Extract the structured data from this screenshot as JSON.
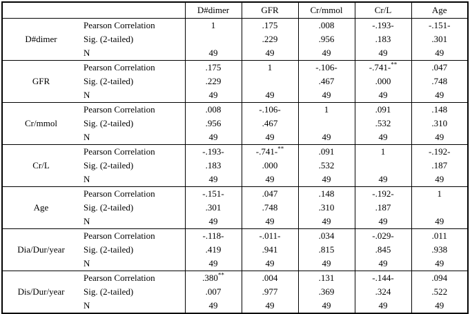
{
  "page": {
    "background": "#ffffff"
  },
  "table": {
    "columns": [
      "D#dimer",
      "GFR",
      "Cr/mmol",
      "Cr/L",
      "Age"
    ],
    "row_labels": {
      "pearson": "Pearson Correlation",
      "sig": "Sig. (2-tailed)",
      "n": "N"
    },
    "groups": [
      {
        "variable": "D#dimer",
        "pearson": [
          "1",
          ".175",
          ".008",
          "-.193-",
          "-.151-"
        ],
        "sig": [
          "",
          ".229",
          ".956",
          ".183",
          ".301"
        ],
        "n": [
          "49",
          "49",
          "49",
          "49",
          "49"
        ]
      },
      {
        "variable": "GFR",
        "pearson": [
          ".175",
          "1",
          "-.106-",
          "-.741-**",
          ".047"
        ],
        "sig": [
          ".229",
          "",
          ".467",
          ".000",
          ".748"
        ],
        "n": [
          "49",
          "49",
          "49",
          "49",
          "49"
        ]
      },
      {
        "variable": "Cr/mmol",
        "pearson": [
          ".008",
          "-.106-",
          "1",
          ".091",
          ".148"
        ],
        "sig": [
          ".956",
          ".467",
          "",
          ".532",
          ".310"
        ],
        "n": [
          "49",
          "49",
          "49",
          "49",
          "49"
        ]
      },
      {
        "variable": "Cr/L",
        "pearson": [
          "-.193-",
          "-.741-**",
          ".091",
          "1",
          "-.192-"
        ],
        "sig": [
          ".183",
          ".000",
          ".532",
          "",
          ".187"
        ],
        "n": [
          "49",
          "49",
          "49",
          "49",
          "49"
        ]
      },
      {
        "variable": "Age",
        "pearson": [
          "-.151-",
          ".047",
          ".148",
          "-.192-",
          "1"
        ],
        "sig": [
          ".301",
          ".748",
          ".310",
          ".187",
          ""
        ],
        "n": [
          "49",
          "49",
          "49",
          "49",
          "49"
        ]
      },
      {
        "variable": "Dia/Dur/year",
        "pearson": [
          "-.118-",
          "-.011-",
          ".034",
          "-.029-",
          ".011"
        ],
        "sig": [
          ".419",
          ".941",
          ".815",
          ".845",
          ".938"
        ],
        "n": [
          "49",
          "49",
          "49",
          "49",
          "49"
        ]
      },
      {
        "variable": "Dis/Dur/year",
        "pearson": [
          ".380**",
          ".004",
          ".131",
          "-.144-",
          ".094"
        ],
        "sig": [
          ".007",
          ".977",
          ".369",
          ".324",
          ".522"
        ],
        "n": [
          "49",
          "49",
          "49",
          "49",
          "49"
        ]
      }
    ]
  }
}
